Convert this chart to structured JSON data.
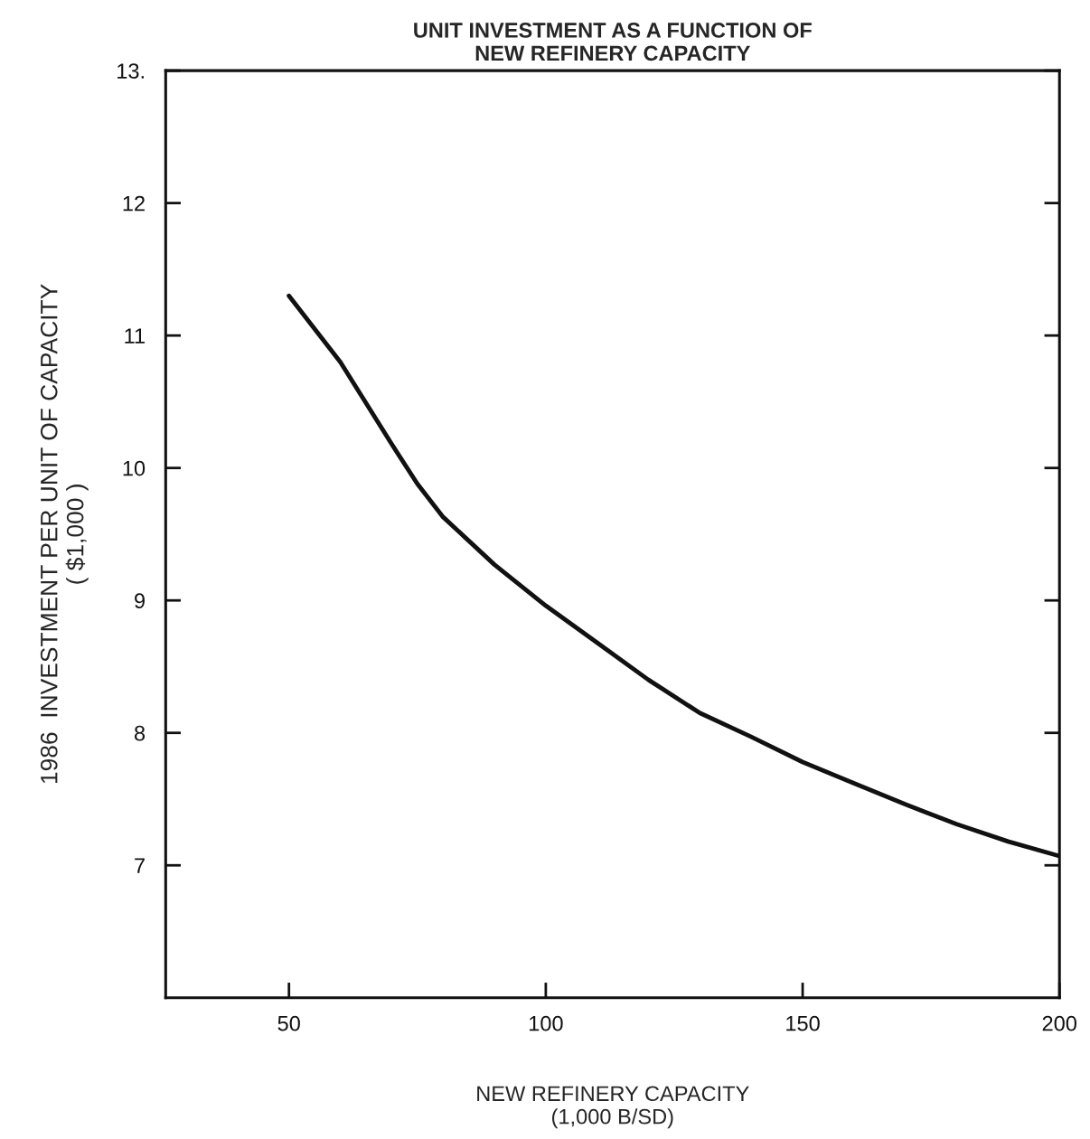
{
  "chart_data": {
    "type": "line",
    "title": "UNIT INVESTMENT AS A FUNCTION OF\nNEW REFINERY CAPACITY",
    "xlabel": "NEW REFINERY CAPACITY\n(1,000 B/SD)",
    "ylabel": "1986  INVESTMENT PER UNIT OF CAPACITY\n( $1,000 )",
    "x": [
      50,
      60,
      70,
      75,
      80,
      90,
      100,
      110,
      120,
      130,
      140,
      150,
      160,
      170,
      180,
      190,
      200
    ],
    "series": [
      {
        "color": "#111111",
        "values": [
          11.3,
          10.8,
          10.18,
          9.88,
          9.63,
          9.27,
          8.96,
          8.68,
          8.4,
          8.15,
          7.97,
          7.78,
          7.62,
          7.46,
          7.31,
          7.18,
          7.07
        ]
      }
    ],
    "xlim": [
      26,
      200
    ],
    "ylim": [
      6,
      13
    ],
    "xticks": [
      50,
      100,
      150,
      200
    ],
    "yticks": [
      7,
      8,
      9,
      10,
      11,
      12,
      {
        "value": 13,
        "label": "13."
      }
    ],
    "grid": false,
    "legend": false,
    "marker": "none",
    "line_style": "solid"
  }
}
